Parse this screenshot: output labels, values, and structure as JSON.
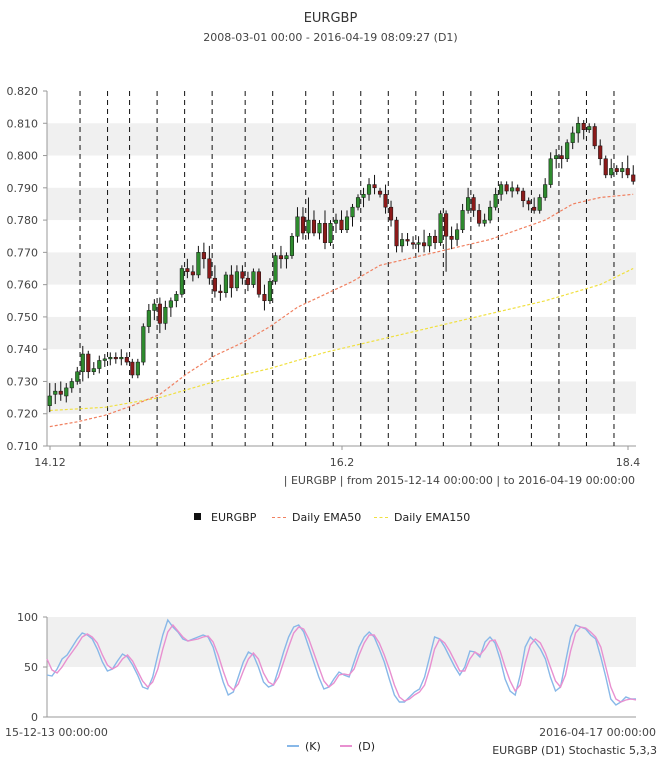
{
  "title": "EURGBP",
  "subtitle": "2008-03-01 00:00 - 2016-04-19 08:09:27 (D1)",
  "range_note": "| EURGBP | from 2015-12-14 00:00:00 | to 2016-04-19 00:00:00",
  "legend": {
    "price": "EURGBP",
    "ema50": "Daily EMA50",
    "ema150": "Daily EMA150"
  },
  "stoch_caption": "EURGBP (D1) Stochastic 5,3,3",
  "stoch_legend": {
    "k": "(K)",
    "d": "(D)"
  },
  "colors": {
    "up_candle": "#2e8b2e",
    "down_candle": "#8b1a1a",
    "ema50": "#f08060",
    "ema150": "#f0e040",
    "band": "#f0f0f0",
    "k_line": "#88b8e8",
    "d_line": "#e890d0"
  },
  "chart_data": [
    {
      "type": "candlestick",
      "title": "EURGBP",
      "x_ticks": [
        "14.12",
        "16.2",
        "18.4"
      ],
      "ylim": [
        0.71,
        0.82
      ],
      "y_ticks": [
        "0.710",
        "0.720",
        "0.730",
        "0.740",
        "0.750",
        "0.760",
        "0.770",
        "0.780",
        "0.790",
        "0.800",
        "0.810",
        "0.820"
      ],
      "grid": "alternating horizontal bands; dashed vertical weekly separators",
      "ohlc": [
        [
          0.7225,
          0.7295,
          0.7205,
          0.7255
        ],
        [
          0.726,
          0.7295,
          0.723,
          0.727
        ],
        [
          0.727,
          0.73,
          0.724,
          0.726
        ],
        [
          0.7255,
          0.7295,
          0.7235,
          0.728
        ],
        [
          0.728,
          0.731,
          0.7265,
          0.73
        ],
        [
          0.73,
          0.7345,
          0.729,
          0.733
        ],
        [
          0.733,
          0.741,
          0.73,
          0.7385
        ],
        [
          0.7385,
          0.7395,
          0.731,
          0.733
        ],
        [
          0.733,
          0.736,
          0.732,
          0.734
        ],
        [
          0.734,
          0.738,
          0.7325,
          0.7365
        ],
        [
          0.7365,
          0.7385,
          0.7345,
          0.737
        ],
        [
          0.737,
          0.739,
          0.735,
          0.7375
        ],
        [
          0.7375,
          0.739,
          0.7355,
          0.737
        ],
        [
          0.737,
          0.74,
          0.735,
          0.7375
        ],
        [
          0.7375,
          0.739,
          0.735,
          0.736
        ],
        [
          0.736,
          0.737,
          0.731,
          0.732
        ],
        [
          0.732,
          0.737,
          0.731,
          0.736
        ],
        [
          0.736,
          0.748,
          0.735,
          0.747
        ],
        [
          0.747,
          0.754,
          0.745,
          0.752
        ],
        [
          0.752,
          0.7555,
          0.749,
          0.754
        ],
        [
          0.754,
          0.756,
          0.745,
          0.748
        ],
        [
          0.748,
          0.755,
          0.746,
          0.753
        ],
        [
          0.753,
          0.756,
          0.75,
          0.755
        ],
        [
          0.755,
          0.758,
          0.753,
          0.757
        ],
        [
          0.757,
          0.766,
          0.756,
          0.765
        ],
        [
          0.765,
          0.768,
          0.762,
          0.764
        ],
        [
          0.764,
          0.766,
          0.761,
          0.763
        ],
        [
          0.763,
          0.772,
          0.762,
          0.77
        ],
        [
          0.77,
          0.773,
          0.765,
          0.768
        ],
        [
          0.768,
          0.772,
          0.76,
          0.762
        ],
        [
          0.762,
          0.766,
          0.756,
          0.758
        ],
        [
          0.758,
          0.76,
          0.755,
          0.7575
        ],
        [
          0.7575,
          0.764,
          0.756,
          0.763
        ],
        [
          0.763,
          0.766,
          0.756,
          0.759
        ],
        [
          0.759,
          0.766,
          0.758,
          0.764
        ],
        [
          0.764,
          0.766,
          0.76,
          0.762
        ],
        [
          0.762,
          0.764,
          0.758,
          0.76
        ],
        [
          0.76,
          0.765,
          0.759,
          0.764
        ],
        [
          0.764,
          0.765,
          0.756,
          0.757
        ],
        [
          0.757,
          0.76,
          0.752,
          0.755
        ],
        [
          0.755,
          0.762,
          0.754,
          0.761
        ],
        [
          0.761,
          0.77,
          0.76,
          0.769
        ],
        [
          0.769,
          0.772,
          0.765,
          0.768
        ],
        [
          0.768,
          0.77,
          0.765,
          0.769
        ],
        [
          0.769,
          0.776,
          0.768,
          0.775
        ],
        [
          0.775,
          0.784,
          0.773,
          0.781
        ],
        [
          0.781,
          0.784,
          0.774,
          0.776
        ],
        [
          0.776,
          0.787,
          0.774,
          0.78
        ],
        [
          0.78,
          0.783,
          0.775,
          0.776
        ],
        [
          0.776,
          0.78,
          0.774,
          0.779
        ],
        [
          0.779,
          0.783,
          0.771,
          0.773
        ],
        [
          0.773,
          0.78,
          0.772,
          0.779
        ],
        [
          0.779,
          0.782,
          0.776,
          0.78
        ],
        [
          0.78,
          0.783,
          0.776,
          0.777
        ],
        [
          0.777,
          0.783,
          0.776,
          0.781
        ],
        [
          0.781,
          0.785,
          0.778,
          0.784
        ],
        [
          0.784,
          0.788,
          0.783,
          0.787
        ],
        [
          0.787,
          0.79,
          0.784,
          0.788
        ],
        [
          0.788,
          0.793,
          0.786,
          0.791
        ],
        [
          0.791,
          0.794,
          0.788,
          0.79
        ],
        [
          0.789,
          0.79,
          0.787,
          0.788
        ],
        [
          0.788,
          0.791,
          0.782,
          0.784
        ],
        [
          0.784,
          0.786,
          0.778,
          0.78
        ],
        [
          0.78,
          0.781,
          0.77,
          0.772
        ],
        [
          0.772,
          0.776,
          0.77,
          0.774
        ],
        [
          0.774,
          0.776,
          0.772,
          0.7735
        ],
        [
          0.773,
          0.775,
          0.771,
          0.7725
        ],
        [
          0.7725,
          0.775,
          0.77,
          0.773
        ],
        [
          0.773,
          0.777,
          0.77,
          0.772
        ],
        [
          0.772,
          0.776,
          0.77,
          0.775
        ],
        [
          0.775,
          0.777,
          0.771,
          0.773
        ],
        [
          0.773,
          0.783,
          0.772,
          0.782
        ],
        [
          0.782,
          0.783,
          0.764,
          0.775
        ],
        [
          0.775,
          0.778,
          0.771,
          0.774
        ],
        [
          0.774,
          0.779,
          0.772,
          0.777
        ],
        [
          0.777,
          0.785,
          0.776,
          0.783
        ],
        [
          0.783,
          0.79,
          0.782,
          0.787
        ],
        [
          0.787,
          0.788,
          0.781,
          0.783
        ],
        [
          0.783,
          0.785,
          0.778,
          0.779
        ],
        [
          0.779,
          0.782,
          0.778,
          0.78
        ],
        [
          0.78,
          0.786,
          0.779,
          0.784
        ],
        [
          0.784,
          0.79,
          0.783,
          0.788
        ],
        [
          0.788,
          0.792,
          0.786,
          0.791
        ],
        [
          0.791,
          0.792,
          0.788,
          0.789
        ],
        [
          0.789,
          0.792,
          0.787,
          0.79
        ],
        [
          0.79,
          0.791,
          0.788,
          0.789
        ],
        [
          0.789,
          0.79,
          0.784,
          0.786
        ],
        [
          0.786,
          0.787,
          0.783,
          0.785
        ],
        [
          0.784,
          0.787,
          0.782,
          0.783
        ],
        [
          0.783,
          0.788,
          0.782,
          0.787
        ],
        [
          0.787,
          0.793,
          0.786,
          0.791
        ],
        [
          0.791,
          0.801,
          0.79,
          0.799
        ],
        [
          0.799,
          0.802,
          0.796,
          0.8
        ],
        [
          0.8,
          0.803,
          0.796,
          0.799
        ],
        [
          0.799,
          0.805,
          0.798,
          0.804
        ],
        [
          0.804,
          0.809,
          0.802,
          0.807
        ],
        [
          0.807,
          0.812,
          0.804,
          0.81
        ],
        [
          0.81,
          0.811,
          0.805,
          0.808
        ],
        [
          0.808,
          0.81,
          0.807,
          0.809
        ],
        [
          0.809,
          0.81,
          0.802,
          0.803
        ],
        [
          0.803,
          0.805,
          0.797,
          0.799
        ],
        [
          0.799,
          0.8,
          0.793,
          0.794
        ],
        [
          0.794,
          0.799,
          0.793,
          0.796
        ],
        [
          0.796,
          0.797,
          0.794,
          0.795
        ],
        [
          0.795,
          0.798,
          0.793,
          0.796
        ],
        [
          0.796,
          0.8,
          0.793,
          0.794
        ],
        [
          0.794,
          0.797,
          0.791,
          0.792
        ]
      ],
      "week_separator_candle_index": [
        6,
        11,
        15,
        20,
        25,
        30,
        36,
        41,
        47,
        52,
        57,
        62,
        67,
        72,
        77,
        82,
        88,
        93,
        98,
        103
      ],
      "ema50": [
        [
          0,
          0.716
        ],
        [
          5,
          0.7175
        ],
        [
          10,
          0.7195
        ],
        [
          15,
          0.7225
        ],
        [
          20,
          0.726
        ],
        [
          25,
          0.7325
        ],
        [
          30,
          0.738
        ],
        [
          35,
          0.742
        ],
        [
          40,
          0.747
        ],
        [
          45,
          0.753
        ],
        [
          50,
          0.757
        ],
        [
          55,
          0.761
        ],
        [
          60,
          0.766
        ],
        [
          65,
          0.768
        ],
        [
          70,
          0.77
        ],
        [
          75,
          0.772
        ],
        [
          80,
          0.774
        ],
        [
          85,
          0.777
        ],
        [
          90,
          0.78
        ],
        [
          95,
          0.785
        ],
        [
          100,
          0.787
        ],
        [
          106,
          0.788
        ]
      ],
      "ema150": [
        [
          0,
          0.721
        ],
        [
          10,
          0.722
        ],
        [
          20,
          0.725
        ],
        [
          30,
          0.73
        ],
        [
          40,
          0.734
        ],
        [
          50,
          0.739
        ],
        [
          60,
          0.743
        ],
        [
          70,
          0.747
        ],
        [
          80,
          0.751
        ],
        [
          90,
          0.755
        ],
        [
          100,
          0.76
        ],
        [
          106,
          0.765
        ]
      ]
    },
    {
      "type": "line",
      "title": "EURGBP (D1) Stochastic 5,3,3",
      "ylim": [
        0,
        100
      ],
      "y_ticks": [
        "0",
        "50",
        "100"
      ],
      "x_start_label": "15-12-13 00:00:00",
      "x_end_label": "2016-04-17 00:00:00",
      "series": [
        {
          "name": "(K)",
          "values": [
            42,
            41,
            48,
            58,
            62,
            70,
            78,
            84,
            82,
            78,
            68,
            55,
            46,
            48,
            56,
            63,
            60,
            52,
            42,
            30,
            28,
            40,
            62,
            82,
            97,
            90,
            85,
            78,
            76,
            78,
            80,
            82,
            80,
            70,
            52,
            35,
            22,
            25,
            40,
            55,
            65,
            62,
            50,
            35,
            30,
            32,
            48,
            65,
            80,
            90,
            92,
            85,
            70,
            55,
            40,
            28,
            30,
            38,
            45,
            42,
            40,
            55,
            70,
            80,
            85,
            80,
            68,
            55,
            38,
            22,
            15,
            15,
            20,
            25,
            28,
            40,
            60,
            80,
            78,
            70,
            60,
            50,
            42,
            50,
            66,
            65,
            60,
            75,
            80,
            74,
            58,
            38,
            26,
            22,
            42,
            70,
            80,
            75,
            68,
            58,
            40,
            26,
            30,
            55,
            80,
            92,
            90,
            88,
            82,
            78,
            60,
            40,
            18,
            12,
            15,
            20,
            18,
            18
          ]
        },
        {
          "name": "(D)",
          "values": [
            58,
            47,
            44,
            50,
            58,
            65,
            72,
            80,
            83,
            80,
            74,
            62,
            52,
            48,
            51,
            58,
            62,
            56,
            46,
            36,
            30,
            35,
            48,
            68,
            85,
            92,
            86,
            80,
            76,
            77,
            78,
            80,
            81,
            75,
            62,
            46,
            32,
            27,
            33,
            46,
            58,
            64,
            58,
            44,
            35,
            32,
            40,
            55,
            70,
            84,
            90,
            88,
            78,
            64,
            50,
            36,
            30,
            34,
            42,
            43,
            42,
            48,
            62,
            74,
            82,
            82,
            74,
            62,
            48,
            32,
            20,
            16,
            18,
            22,
            25,
            32,
            48,
            68,
            78,
            74,
            66,
            56,
            46,
            46,
            58,
            65,
            62,
            68,
            76,
            77,
            66,
            50,
            36,
            26,
            32,
            54,
            72,
            78,
            74,
            64,
            50,
            36,
            30,
            42,
            66,
            84,
            90,
            89,
            85,
            80,
            70,
            50,
            30,
            18,
            15,
            17,
            18,
            17
          ]
        }
      ]
    }
  ]
}
